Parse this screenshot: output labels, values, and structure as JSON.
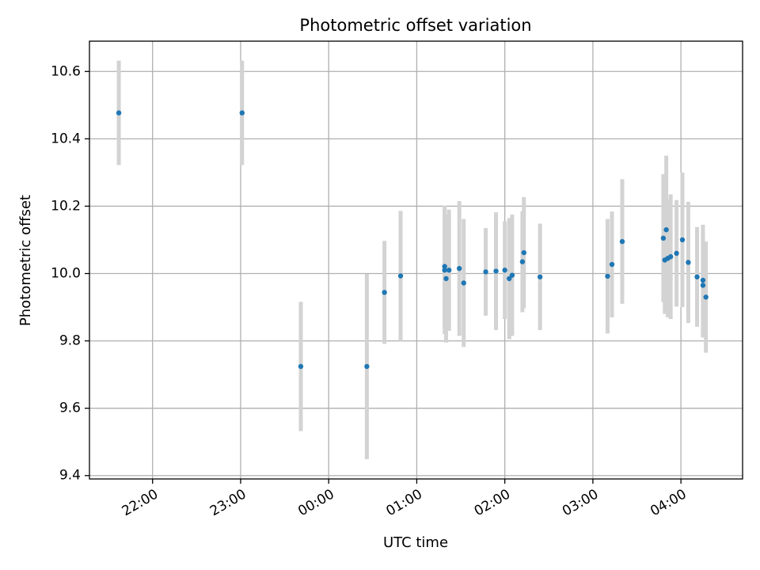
{
  "chart_data": {
    "type": "scatter",
    "title": "Photometric offset variation",
    "xlabel": "UTC time",
    "ylabel": "Photometric offset",
    "grid": true,
    "legend": "none",
    "x_axis_kind": "time-of-day (UTC)",
    "xlim": [
      "21:17",
      "04:42"
    ],
    "ylim": [
      9.39,
      10.69
    ],
    "x_ticks": [
      "22:00",
      "23:00",
      "00:00",
      "01:00",
      "02:00",
      "03:00",
      "04:00"
    ],
    "y_ticks": [
      "9.4",
      "9.6",
      "9.8",
      "10.0",
      "10.2",
      "10.4",
      "10.6"
    ],
    "colors": {
      "marker": "#1f77b4",
      "errorbar": "#d3d3d3",
      "grid": "#b0b0b0"
    },
    "points": [
      {
        "x": "21:37",
        "y": 10.477,
        "yerr": 0.155
      },
      {
        "x": "23:01",
        "y": 10.477,
        "yerr": 0.155
      },
      {
        "x": "23:41",
        "y": 9.724,
        "yerr": 0.192
      },
      {
        "x": "00:26",
        "y": 9.724,
        "yerr": 0.275
      },
      {
        "x": "00:38",
        "y": 9.944,
        "yerr": 0.153
      },
      {
        "x": "00:49",
        "y": 9.993,
        "yerr": 0.193
      },
      {
        "x": "01:19",
        "y": 10.021,
        "yerr": 0.18
      },
      {
        "x": "01:19",
        "y": 10.01,
        "yerr": 0.19
      },
      {
        "x": "01:20",
        "y": 9.985,
        "yerr": 0.19
      },
      {
        "x": "01:22",
        "y": 10.01,
        "yerr": 0.18
      },
      {
        "x": "01:29",
        "y": 10.015,
        "yerr": 0.2
      },
      {
        "x": "01:32",
        "y": 9.972,
        "yerr": 0.19
      },
      {
        "x": "01:47",
        "y": 10.005,
        "yerr": 0.13
      },
      {
        "x": "01:54",
        "y": 10.007,
        "yerr": 0.175
      },
      {
        "x": "02:00",
        "y": 10.01,
        "yerr": 0.145
      },
      {
        "x": "02:03",
        "y": 9.985,
        "yerr": 0.18
      },
      {
        "x": "02:05",
        "y": 9.995,
        "yerr": 0.18
      },
      {
        "x": "02:12",
        "y": 10.035,
        "yerr": 0.15
      },
      {
        "x": "02:13",
        "y": 10.062,
        "yerr": 0.165
      },
      {
        "x": "02:24",
        "y": 9.99,
        "yerr": 0.158
      },
      {
        "x": "03:10",
        "y": 9.992,
        "yerr": 0.17
      },
      {
        "x": "03:13",
        "y": 10.027,
        "yerr": 0.157
      },
      {
        "x": "03:20",
        "y": 10.095,
        "yerr": 0.185
      },
      {
        "x": "03:48",
        "y": 10.105,
        "yerr": 0.19
      },
      {
        "x": "03:49",
        "y": 10.04,
        "yerr": 0.16
      },
      {
        "x": "03:50",
        "y": 10.13,
        "yerr": 0.22
      },
      {
        "x": "03:51",
        "y": 10.045,
        "yerr": 0.175
      },
      {
        "x": "03:53",
        "y": 10.05,
        "yerr": 0.185
      },
      {
        "x": "03:57",
        "y": 10.06,
        "yerr": 0.158
      },
      {
        "x": "04:01",
        "y": 10.1,
        "yerr": 0.2
      },
      {
        "x": "04:05",
        "y": 10.033,
        "yerr": 0.18
      },
      {
        "x": "04:11",
        "y": 9.99,
        "yerr": 0.148
      },
      {
        "x": "04:15",
        "y": 9.98,
        "yerr": 0.165
      },
      {
        "x": "04:15",
        "y": 9.965,
        "yerr": 0.155
      },
      {
        "x": "04:17",
        "y": 9.93,
        "yerr": 0.165
      }
    ]
  }
}
